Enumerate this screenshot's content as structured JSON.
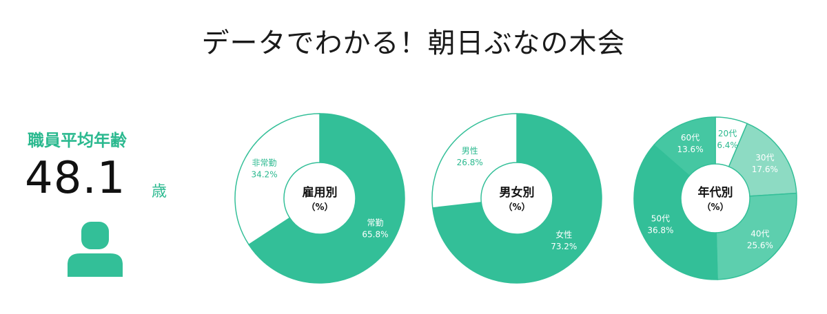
{
  "page": {
    "title": "データでわかる！朝日ぶなの木会"
  },
  "average_age": {
    "label": "職員平均年齢",
    "value": "48.1",
    "unit": "歳",
    "icon": "person-icon"
  },
  "colors": {
    "primary": "#33bf98",
    "outline": "#33bf98",
    "text_green": "#2bb98f",
    "white": "#ffffff"
  },
  "chart_data": [
    {
      "type": "pie",
      "title": "雇用別",
      "unit": "（%）",
      "slices": [
        {
          "name": "常勤",
          "value": 65.8,
          "label": "65.8%",
          "color": "#33bf98"
        },
        {
          "name": "非常勤",
          "value": 34.2,
          "label": "34.2%",
          "color": "#ffffff"
        }
      ]
    },
    {
      "type": "pie",
      "title": "男女別",
      "unit": "（%）",
      "slices": [
        {
          "name": "女性",
          "value": 73.2,
          "label": "73.2%",
          "color": "#33bf98"
        },
        {
          "name": "男性",
          "value": 26.8,
          "label": "26.8%",
          "color": "#ffffff"
        }
      ]
    },
    {
      "type": "pie",
      "title": "年代別",
      "unit": "（%）",
      "slices": [
        {
          "name": "20代",
          "value": 6.4,
          "label": "6.4%",
          "color": "#ffffff"
        },
        {
          "name": "30代",
          "value": 17.6,
          "label": "17.6%",
          "color": "#8ddbc3"
        },
        {
          "name": "40代",
          "value": 25.6,
          "label": "25.6%",
          "color": "#5dcfae"
        },
        {
          "name": "50代",
          "value": 36.8,
          "label": "36.8%",
          "color": "#33bf98"
        },
        {
          "name": "60代",
          "value": 13.6,
          "label": "13.6%",
          "color": "#45c7a2"
        }
      ]
    }
  ]
}
